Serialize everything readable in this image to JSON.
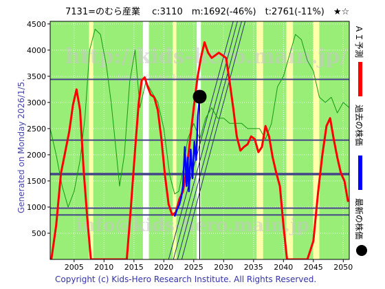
{
  "header": {
    "title": "7131=のむら産業　 c:3110　m:1692(-46%)　t:2761(-11%)　★☆"
  },
  "generated_label": "Generated on Monday 2026/1/5.",
  "copyright": "Copyright (c) Kids-Hero Research Institute. All Rights Reserved.",
  "watermarks": {
    "url_large": "http://kids-hero.main.jp/",
    "url_small": "http://kids-hero.main.jp/",
    "email": "info@kids-hero.main.jp"
  },
  "legend": [
    {
      "label": "ＡＩ予測",
      "color": "#ff0000"
    },
    {
      "label": "過去の株価",
      "color": "#0000ff"
    },
    {
      "label": "最新の株価",
      "color": "#000000"
    }
  ],
  "colors": {
    "green_band": "#99ee77",
    "yellow_band": "#ffffaa",
    "forecast": "#ff0000",
    "past_price": "#0000ff",
    "thin_green": "#119911",
    "hlines": "#444488",
    "diag": "#223366"
  },
  "chart_data": {
    "type": "line",
    "title": "7131=のむら産業　 c:3110　m:1692(-46%)　t:2761(-11%)　★☆",
    "xlim": [
      2001,
      2051
    ],
    "ylim": [
      0,
      4550
    ],
    "x_ticks": [
      2005,
      2010,
      2015,
      2020,
      2025,
      2030,
      2035,
      2040,
      2045,
      2050
    ],
    "y_ticks": [
      500,
      1000,
      1500,
      2000,
      2500,
      3000,
      3500,
      4000,
      4500
    ],
    "grid": true,
    "legend_position": "right",
    "current": {
      "x": 2026.0,
      "y": 3110
    },
    "current_vline_x": 2026.0,
    "horizontal_levels": [
      3440,
      2280,
      1640,
      1620,
      980,
      850
    ],
    "green_bands": [
      [
        2001,
        2007.5
      ],
      [
        2008,
        2016.5
      ],
      [
        2017.5,
        2021.5
      ],
      [
        2022,
        2025.5
      ],
      [
        2026.2,
        2035.5
      ],
      [
        2036.5,
        2040.5
      ],
      [
        2041.5,
        2045
      ],
      [
        2046,
        2051
      ]
    ],
    "yellow_bands": [
      [
        2007.5,
        2008.2
      ],
      [
        2021.5,
        2022.1
      ],
      [
        2035.5,
        2036.6
      ],
      [
        2040.5,
        2041.6
      ],
      [
        2045,
        2046
      ]
    ],
    "diagonal_lines": [
      {
        "x0": 2020.8,
        "y0": 0,
        "x1": 2031.6,
        "y1": 4550
      },
      {
        "x0": 2021.6,
        "y0": 0,
        "x1": 2032.3,
        "y1": 4550
      },
      {
        "x0": 2022.3,
        "y0": 0,
        "x1": 2033.0,
        "y1": 4550
      },
      {
        "x0": 2023.0,
        "y0": 0,
        "x1": 2033.6,
        "y1": 4550
      }
    ],
    "series": [
      {
        "name": "ＡＩ予測",
        "color": "#ff0000",
        "x": [
          2001.2,
          2002,
          2002.8,
          2003.5,
          2004.2,
          2004.8,
          2005.4,
          2006,
          2006.6,
          2007.2,
          2007.8,
          2008.4,
          2009,
          2010,
          2011,
          2012,
          2013,
          2013.8,
          2014.5,
          2015.2,
          2015.8,
          2016.3,
          2016.8,
          2017.3,
          2017.8,
          2018.4,
          2019,
          2019.6,
          2020.2,
          2020.8,
          2021.4,
          2022,
          2022.6,
          2023.2,
          2023.8,
          2024.4,
          2025,
          2025.6,
          2026.2,
          2026.8,
          2027.4,
          2028,
          2028.6,
          2029.2,
          2029.8,
          2030.4,
          2031,
          2031.6,
          2032.2,
          2032.8,
          2033.4,
          2034,
          2034.6,
          2035.2,
          2035.8,
          2036.4,
          2037,
          2037.6,
          2038.2,
          2038.8,
          2039.4,
          2040,
          2040.6,
          2041.2,
          2042,
          2043,
          2044,
          2045,
          2045.8,
          2046.5,
          2047.2,
          2047.8,
          2048.4,
          2049,
          2049.6,
          2050.2,
          2050.8
        ],
        "y": [
          0,
          650,
          1650,
          2050,
          2450,
          2950,
          3250,
          2850,
          1700,
          800,
          0,
          0,
          0,
          0,
          0,
          0,
          0,
          0,
          1000,
          2100,
          3000,
          3420,
          3480,
          3300,
          3150,
          3100,
          2850,
          2300,
          1600,
          1050,
          850,
          900,
          1150,
          1300,
          1700,
          2300,
          2900,
          3450,
          3850,
          4150,
          3950,
          3850,
          3900,
          3950,
          3900,
          3850,
          3400,
          2900,
          2350,
          2080,
          2150,
          2200,
          2350,
          2300,
          2050,
          2150,
          2550,
          2350,
          1950,
          1650,
          1400,
          650,
          0,
          0,
          0,
          0,
          0,
          350,
          1300,
          2000,
          2550,
          2700,
          2300,
          1950,
          1650,
          1500,
          1100
        ]
      },
      {
        "name": "過去の株価",
        "color": "#0000ff",
        "x": [
          2021.8,
          2022.2,
          2022.6,
          2022.9,
          2023.2,
          2023.5,
          2023.8,
          2024.0,
          2024.2,
          2024.5,
          2024.8,
          2025.1,
          2025.4,
          2025.7,
          2026.0
        ],
        "y": [
          820,
          950,
          1050,
          1180,
          1400,
          2150,
          1400,
          1950,
          1300,
          2100,
          1550,
          2250,
          1900,
          2750,
          3110
        ]
      },
      {
        "name": "緑線",
        "color": "#119911",
        "x": [
          2001,
          2002,
          2003,
          2004,
          2005,
          2006,
          2006.8,
          2007.6,
          2008.5,
          2009.4,
          2010.4,
          2011.2,
          2012,
          2012.6,
          2013.4,
          2014.3,
          2015.2,
          2016,
          2017,
          2018,
          2019,
          2020,
          2021,
          2021.8,
          2022.5,
          2023.2,
          2024,
          2025,
          2026,
          2027,
          2028,
          2029,
          2030,
          2031,
          2032,
          2033,
          2034,
          2035,
          2036,
          2037,
          2038,
          2039,
          2040,
          2041,
          2042,
          2043,
          2044,
          2045,
          2046,
          2047,
          2048,
          2049,
          2050,
          2051
        ],
        "y": [
          2500,
          2000,
          1400,
          1000,
          1300,
          1900,
          2700,
          4000,
          4400,
          4300,
          3700,
          3000,
          2100,
          1400,
          2000,
          3400,
          4000,
          2900,
          3400,
          3200,
          3000,
          2500,
          1600,
          1250,
          1300,
          1700,
          2300,
          2600,
          2300,
          2700,
          2900,
          2700,
          2700,
          2600,
          2600,
          2600,
          2500,
          2500,
          2500,
          2300,
          2600,
          3300,
          3500,
          3900,
          4300,
          4200,
          3800,
          3600,
          3100,
          3000,
          3100,
          2800,
          3000,
          2900
        ]
      }
    ]
  }
}
